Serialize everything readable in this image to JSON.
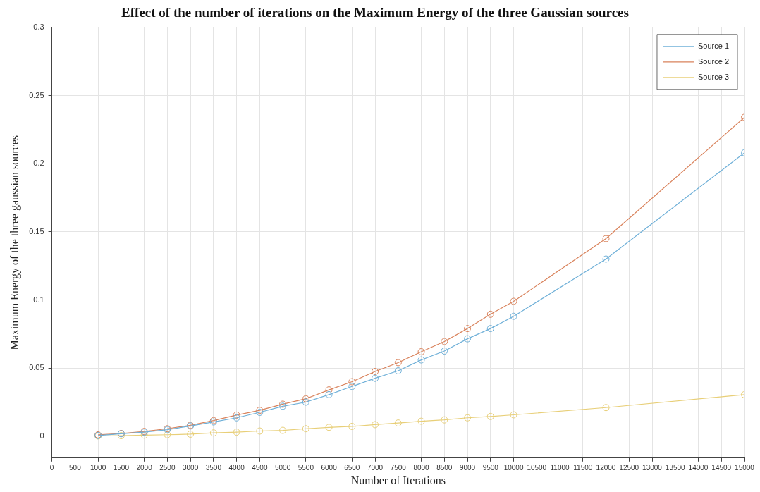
{
  "chart_data": {
    "type": "line",
    "title": "Effect of the number of iterations on the Maximum Energy of the three Gaussian sources",
    "xlabel": "Number of Iterations",
    "ylabel": "Maximum Energy of the three gaussian sources",
    "x": [
      1000,
      1500,
      2000,
      2500,
      3000,
      3500,
      4000,
      4500,
      5000,
      5500,
      6000,
      6500,
      7000,
      7500,
      8000,
      8500,
      9000,
      9500,
      10000,
      12000,
      15000
    ],
    "series": [
      {
        "name": "Source 1",
        "color": "#6fb0d8",
        "values": [
          0.0005,
          0.0018,
          0.003,
          0.0048,
          0.0075,
          0.0105,
          0.0135,
          0.0175,
          0.022,
          0.025,
          0.0305,
          0.0365,
          0.0425,
          0.048,
          0.056,
          0.0625,
          0.0715,
          0.079,
          0.088,
          0.13,
          0.208
        ]
      },
      {
        "name": "Source 2",
        "color": "#d9825b",
        "values": [
          0.001,
          0.002,
          0.0035,
          0.0055,
          0.008,
          0.0115,
          0.0155,
          0.019,
          0.0235,
          0.0275,
          0.034,
          0.04,
          0.0475,
          0.054,
          0.062,
          0.0695,
          0.079,
          0.0895,
          0.099,
          0.145,
          0.234
        ]
      },
      {
        "name": "Source 3",
        "color": "#e8cf78",
        "values": [
          0.0002,
          0.0004,
          0.0008,
          0.0011,
          0.0015,
          0.0024,
          0.003,
          0.0038,
          0.0043,
          0.0055,
          0.0065,
          0.0072,
          0.0085,
          0.0097,
          0.011,
          0.012,
          0.0135,
          0.0145,
          0.0157,
          0.021,
          0.0305
        ]
      }
    ],
    "xlim": [
      0,
      15000
    ],
    "xticks": [
      0,
      500,
      1000,
      1500,
      2000,
      2500,
      3000,
      3500,
      4000,
      4500,
      5000,
      5500,
      6000,
      6500,
      7000,
      7500,
      8000,
      8500,
      9000,
      9500,
      10000,
      10500,
      11000,
      11500,
      12000,
      12500,
      13000,
      13500,
      14000,
      14500,
      15000
    ],
    "ylim": [
      -0.016,
      0.3
    ],
    "yticks": [
      0,
      0.05,
      0.1,
      0.15,
      0.2,
      0.25,
      0.3
    ],
    "grid": true,
    "legend": "top right",
    "marker": "circle",
    "line_style": "solid"
  }
}
